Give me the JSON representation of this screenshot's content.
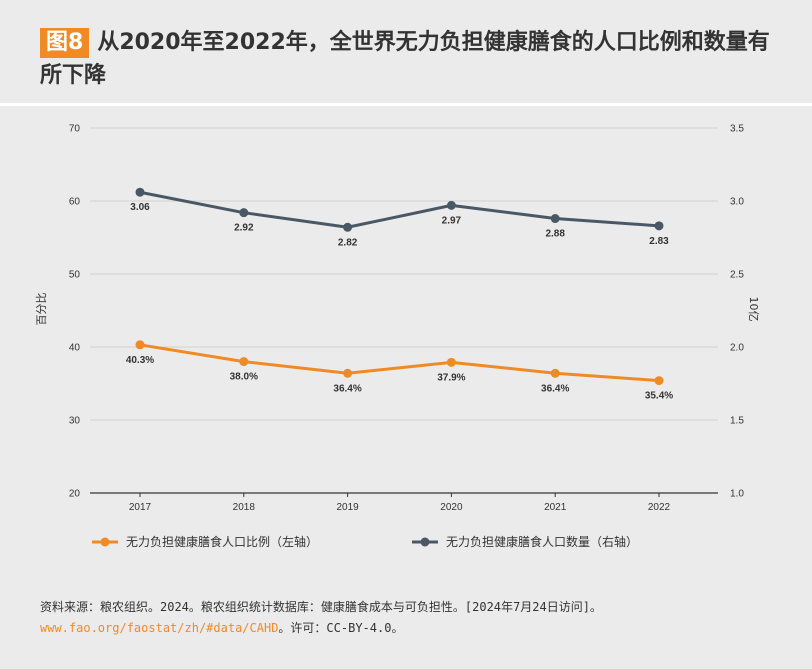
{
  "title": {
    "badge": "图8",
    "text": "从2020年至2022年，全世界无力负担健康膳食的人口比例和数量有所下降"
  },
  "colors": {
    "orange": "#f08a24",
    "slate": "#4a5866"
  },
  "chart_data": {
    "type": "line",
    "x": [
      "2017",
      "2018",
      "2019",
      "2020",
      "2021",
      "2022"
    ],
    "series": [
      {
        "name": "无力负担健康膳食人口比例（左轴）",
        "axis": "left",
        "color": "#f08a24",
        "values": [
          40.3,
          38.0,
          36.4,
          37.9,
          36.4,
          35.4
        ],
        "labels": [
          "40.3%",
          "38.0%",
          "36.4%",
          "37.9%",
          "36.4%",
          "35.4%"
        ]
      },
      {
        "name": "无力负担健康膳食人口数量（右轴）",
        "axis": "right",
        "color": "#4a5866",
        "values": [
          3.06,
          2.92,
          2.82,
          2.97,
          2.88,
          2.83
        ],
        "labels": [
          "3.06",
          "2.92",
          "2.82",
          "2.97",
          "2.88",
          "2.83"
        ]
      }
    ],
    "ylabel_left": "百分比",
    "ylabel_right": "10亿",
    "ylim_left": [
      20,
      70
    ],
    "yticks_left": [
      "20",
      "30",
      "40",
      "50",
      "60",
      "70"
    ],
    "ylim_right": [
      1.0,
      3.5
    ],
    "yticks_right": [
      "1.0",
      "1.5",
      "2.0",
      "2.5",
      "3.0",
      "3.5"
    ],
    "grid": true,
    "legend": "bottom"
  },
  "source": {
    "text": "资料来源：粮农组织。2024。粮农组织统计数据库：健康膳食成本与可负担性。[2024年7月24日访问]。",
    "link": "www.fao.org/faostat/zh/#data/CAHD",
    "suffix": "。许可：CC-BY-4.0。"
  }
}
